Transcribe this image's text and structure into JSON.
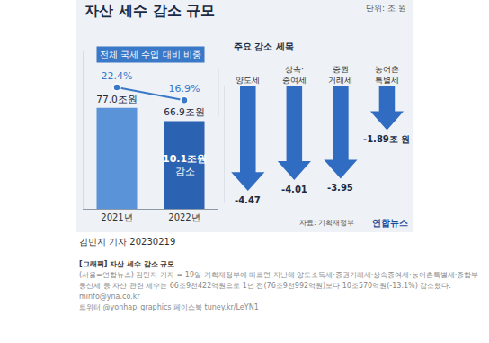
{
  "header": {
    "title": "자산 세수 감소 규모",
    "unit": "단위: 조 원"
  },
  "chart_data": [
    {
      "type": "bar",
      "categories": [
        "2021년",
        "2022년"
      ],
      "series": [
        {
          "type": "bar",
          "values": [
            77.0,
            66.9
          ],
          "value_labels": [
            "77.0조원",
            "66.9조원"
          ],
          "colors": [
            "#5b93d8",
            "#2c62b2"
          ]
        },
        {
          "type": "line",
          "name": "전체 국세 수입 대비 비중",
          "axis": "y2",
          "values": [
            22.4,
            16.9
          ],
          "value_labels": [
            "22.4%",
            "16.9%"
          ],
          "color": "#3a78c8",
          "marker": "circle"
        }
      ],
      "annotations": [
        {
          "category": "2022년",
          "lines": [
            "10.1조원",
            "감소"
          ]
        }
      ],
      "ylim": [
        0,
        120
      ],
      "yticks": [],
      "y2lim": [
        10,
        30
      ],
      "y2ticks": [],
      "data_labels": true,
      "tick_labels": "x",
      "grid": false
    },
    {
      "type": "bar",
      "title": "주요 감소 세목",
      "categories": [
        "양도세",
        "상속·\n증여세",
        "증권\n거래세",
        "농어촌\n특별세"
      ],
      "values": [
        -4.47,
        -4.01,
        -3.95,
        -1.89
      ],
      "value_labels": [
        "-4.47",
        "-4.01",
        "-3.95",
        "-1.89조 원"
      ],
      "color": "#2f6cc2",
      "marker": "arrow",
      "ylim": [
        -5,
        0
      ],
      "yticks": [],
      "data_labels": true,
      "tick_labels": "x",
      "grid": false
    }
  ],
  "source": "자료: 기획재정부",
  "logo": "연합뉴스",
  "byline": "김민지 기자 20230219",
  "caption": {
    "title": "[그래픽] 자산 세수 감소 규모",
    "body": "(서울=연합뉴스) 김민지 기자 = 19일 기획재정부에 따르면 지난해 양도소득세·증권거래세·상속증여세·농어촌특별세·종합부동산세 등 자산 관련 세수는 66조9천422억원으로 1년 전(76조9천992억원)보다 10조570억원(-13.1%) 감소했다.",
    "email": "minfo@yna.co.kr",
    "social": "트위터 @yonhap_graphics 페이스북 tuney.kr/LeYN1"
  }
}
